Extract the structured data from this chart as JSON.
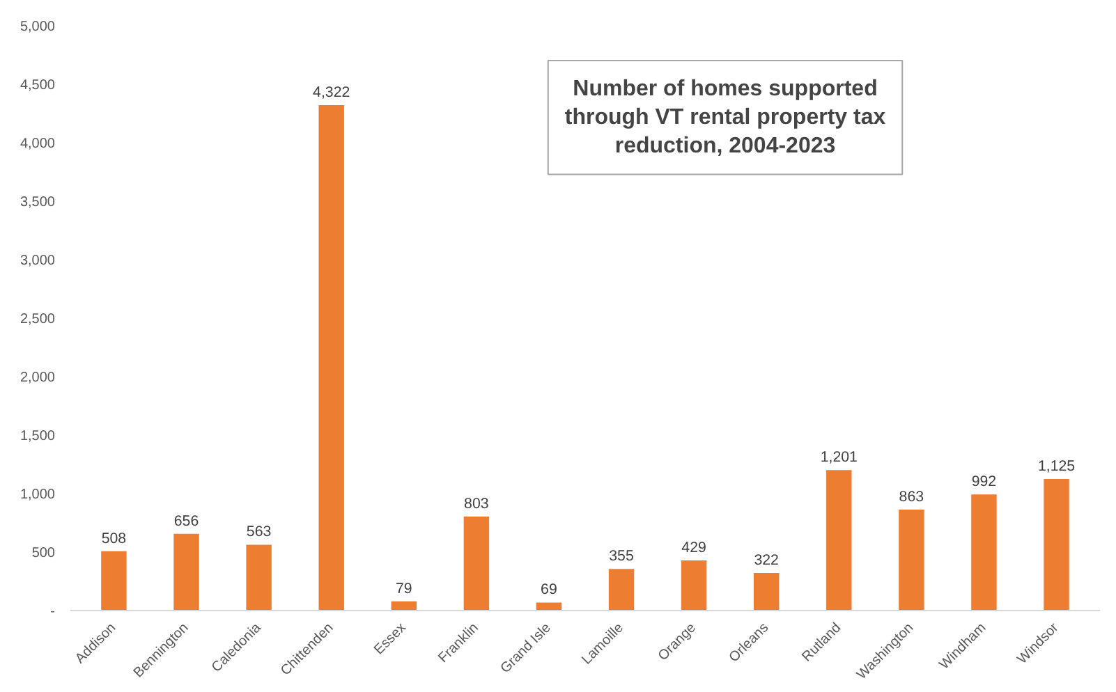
{
  "chart_data": {
    "type": "bar",
    "title": "Number of homes supported through VT rental property tax reduction, 2004-2023",
    "categories": [
      "Addison",
      "Bennington",
      "Caledonia",
      "Chittenden",
      "Essex",
      "Franklin",
      "Grand Isle",
      "Lamoille",
      "Orange",
      "Orleans",
      "Rutland",
      "Washington",
      "Windham",
      "Windsor"
    ],
    "values": [
      508,
      656,
      563,
      4322,
      79,
      803,
      69,
      355,
      429,
      322,
      1201,
      863,
      992,
      1125
    ],
    "value_labels": [
      "508",
      "656",
      "563",
      "4,322",
      "79",
      "803",
      "69",
      "355",
      "429",
      "322",
      "1,201",
      "863",
      "992",
      "1,125"
    ],
    "color": "#ed7d31",
    "grid": false,
    "ylim": [
      0,
      5000
    ],
    "yticks": [
      {
        "value": 0,
        "label": "-"
      },
      {
        "value": 500,
        "label": "500"
      },
      {
        "value": 1000,
        "label": "1,000"
      },
      {
        "value": 1500,
        "label": "1,500"
      },
      {
        "value": 2000,
        "label": "2,000"
      },
      {
        "value": 2500,
        "label": "2,500"
      },
      {
        "value": 3000,
        "label": "3,000"
      },
      {
        "value": 3500,
        "label": "3,500"
      },
      {
        "value": 4000,
        "label": "4,000"
      },
      {
        "value": 4500,
        "label": "4,500"
      },
      {
        "value": 5000,
        "label": "5,000"
      }
    ]
  }
}
